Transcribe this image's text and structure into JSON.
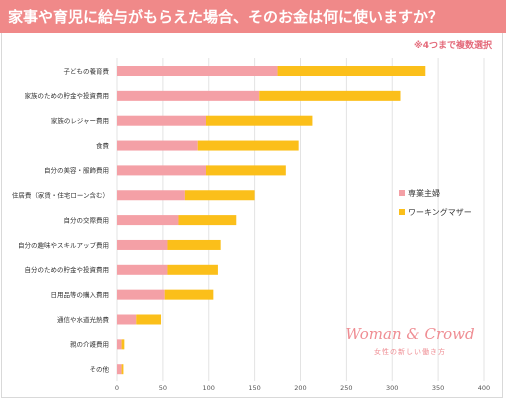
{
  "header": {
    "title": "家事や育児に給与がもらえた場合、そのお金は何に使いますか？",
    "note": "※4つまで複数選択"
  },
  "logo": {
    "name": "Woman & Crowd",
    "tagline": "女性の新しい働き方"
  },
  "colors": {
    "banner": "#f08989",
    "series1": "#f4a0a6",
    "series2": "#fbbf1a",
    "grid": "#e3e3e3",
    "logo": "#ef8d93"
  },
  "chart_data": {
    "type": "bar",
    "orientation": "horizontal",
    "stacked": true,
    "categories": [
      "子どもの養育費",
      "家族のための貯金や投資費用",
      "家族のレジャー費用",
      "食費",
      "自分の美容・服飾費用",
      "住居費（家賃・住宅ローン含む）",
      "自分の交際費用",
      "自分の趣味やスキルアップ費用",
      "自分のための貯金や投資費用",
      "日用品等の購入費用",
      "通信や水道光熱費",
      "親の介護費用",
      "その他"
    ],
    "series": [
      {
        "name": "専業主婦",
        "values": [
          175,
          155,
          97,
          88,
          97,
          74,
          67,
          55,
          55,
          52,
          21,
          5,
          5
        ]
      },
      {
        "name": "ワーキングマザー",
        "values": [
          161,
          154,
          116,
          110,
          87,
          76,
          63,
          58,
          55,
          53,
          27,
          3,
          2
        ]
      }
    ],
    "xlim": [
      0,
      400
    ],
    "xticks": [
      0,
      50,
      100,
      150,
      200,
      250,
      300,
      350,
      400
    ],
    "grid": true,
    "legend": "right"
  }
}
